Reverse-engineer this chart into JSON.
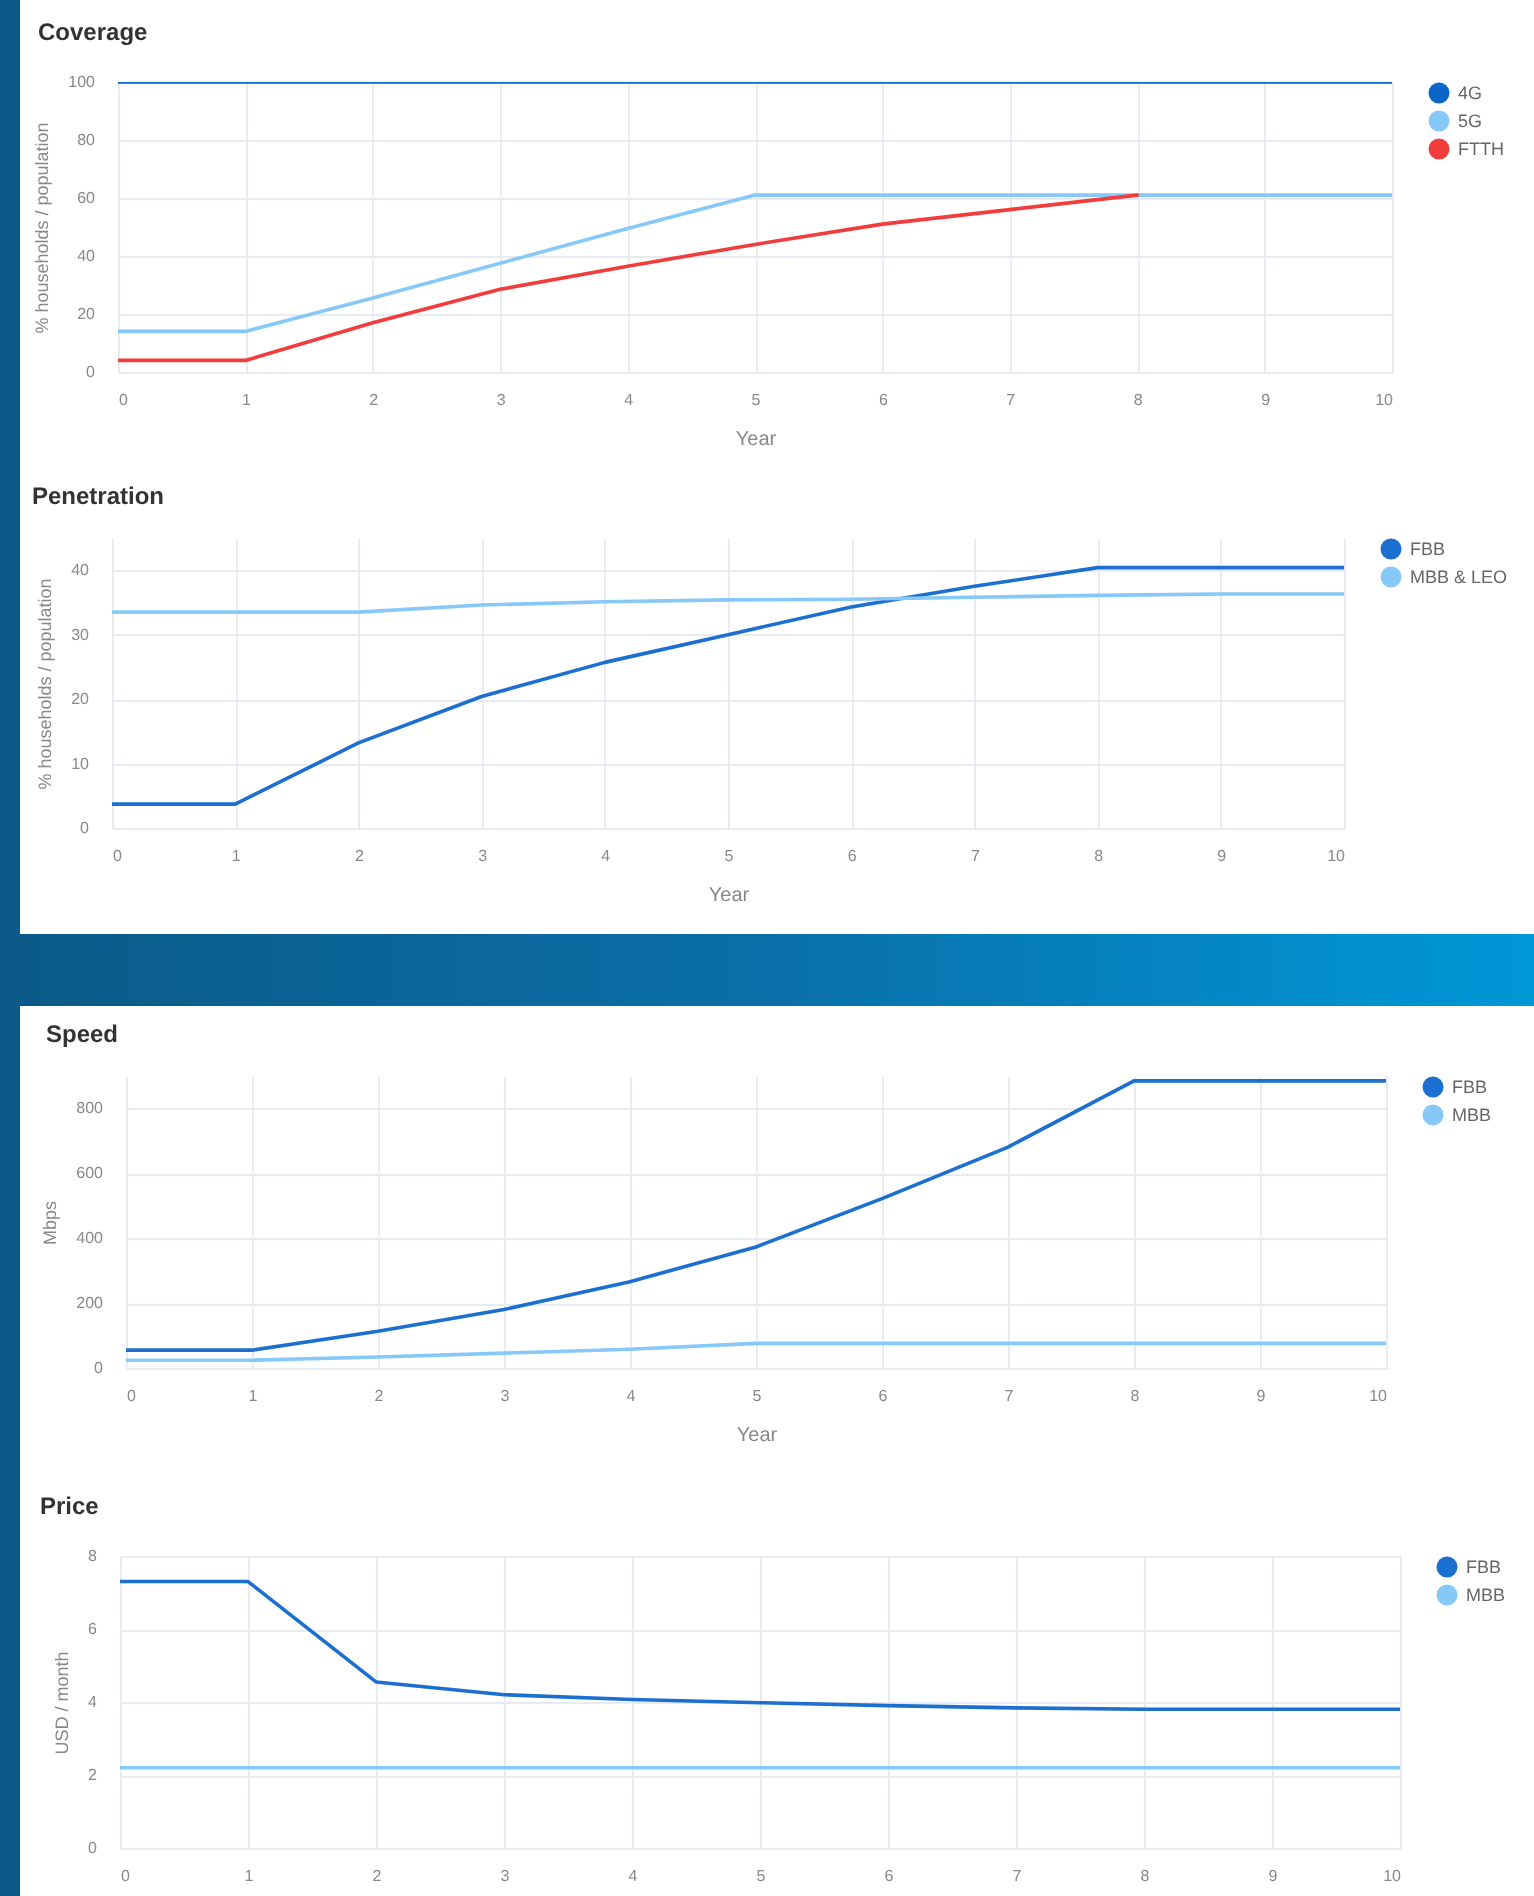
{
  "chart_data": [
    {
      "type": "line",
      "title": "Coverage",
      "xlabel": "Year",
      "ylabel": "% households / population",
      "x": [
        0,
        1,
        2,
        3,
        4,
        5,
        6,
        7,
        8,
        9,
        10
      ],
      "xlim": [
        0,
        10
      ],
      "xticks": [
        0,
        1,
        2,
        3,
        4,
        5,
        6,
        7,
        8,
        9,
        10
      ],
      "ylim": [
        0,
        100
      ],
      "yticks": [
        0,
        20,
        40,
        60,
        80,
        100
      ],
      "grid": true,
      "legend": "top right",
      "marker": "none",
      "line_style": "solid",
      "series": [
        {
          "name": "4G",
          "color": "#0b66c8",
          "values": [
            100,
            100,
            100,
            100,
            100,
            100,
            100,
            100,
            100,
            100,
            100
          ]
        },
        {
          "name": "5G",
          "color": "#86c8f8",
          "values": [
            14,
            14,
            25.5,
            37.5,
            49.5,
            61,
            61,
            61,
            61,
            61,
            61
          ]
        },
        {
          "name": "FTTH",
          "color": "#f23b3b",
          "values": [
            4,
            4,
            17,
            28.5,
            36.5,
            44,
            51,
            56,
            61,
            null,
            null
          ]
        }
      ]
    },
    {
      "type": "line",
      "title": "Penetration",
      "xlabel": "Year",
      "ylabel": "% households / population",
      "x": [
        0,
        1,
        2,
        3,
        4,
        5,
        6,
        7,
        8,
        9,
        10
      ],
      "xlim": [
        0,
        10
      ],
      "xticks": [
        0,
        1,
        2,
        3,
        4,
        5,
        6,
        7,
        8,
        9,
        10
      ],
      "ylim": [
        0,
        45
      ],
      "yticks": [
        0,
        10,
        20,
        30,
        40
      ],
      "grid": true,
      "legend": "top right",
      "marker": "none",
      "line_style": "solid",
      "series": [
        {
          "name": "FBB",
          "color": "#1a6fd0",
          "values": [
            3.7,
            3.7,
            13.2,
            20.4,
            25.7,
            30,
            34.3,
            37.5,
            40.4,
            40.4,
            40.4
          ]
        },
        {
          "name": "MBB & LEO",
          "color": "#86c8f8",
          "values": [
            33.5,
            33.5,
            33.5,
            34.6,
            35.1,
            35.4,
            35.5,
            35.8,
            36.1,
            36.3,
            36.3
          ]
        }
      ]
    },
    {
      "type": "line",
      "title": "Speed",
      "xlabel": "Year",
      "ylabel": "Mbps",
      "x": [
        0,
        1,
        2,
        3,
        4,
        5,
        6,
        7,
        8,
        9,
        10
      ],
      "xlim": [
        0,
        10
      ],
      "xticks": [
        0,
        1,
        2,
        3,
        4,
        5,
        6,
        7,
        8,
        9,
        10
      ],
      "ylim": [
        0,
        900
      ],
      "yticks": [
        0,
        200,
        400,
        600,
        800
      ],
      "grid": true,
      "legend": "top right",
      "marker": "none",
      "line_style": "solid",
      "series": [
        {
          "name": "FBB",
          "color": "#1a6fd0",
          "values": [
            55,
            55,
            113,
            180,
            266,
            373,
            522,
            681,
            885,
            885,
            885
          ]
        },
        {
          "name": "MBB",
          "color": "#86c8f8",
          "values": [
            24,
            24,
            34,
            46,
            58,
            76,
            76,
            76,
            76,
            76,
            76
          ]
        }
      ]
    },
    {
      "type": "line",
      "title": "Price",
      "ylabel": "USD / month",
      "x": [
        0,
        1,
        2,
        3,
        4,
        5,
        6,
        7,
        8,
        9,
        10
      ],
      "xlim": [
        0,
        10
      ],
      "xticks": [
        0,
        1,
        2,
        3,
        4,
        5,
        6,
        7,
        8,
        9,
        10
      ],
      "ylim": [
        0,
        8
      ],
      "yticks": [
        0,
        2,
        4,
        6,
        8
      ],
      "grid": true,
      "legend": "top right",
      "marker": "none",
      "line_style": "solid",
      "series": [
        {
          "name": "FBB",
          "color": "#1a6fd0",
          "values": [
            7.3,
            7.3,
            4.55,
            4.2,
            4.07,
            3.98,
            3.9,
            3.84,
            3.8,
            3.8,
            3.8
          ]
        },
        {
          "name": "MBB",
          "color": "#86c8f8",
          "values": [
            2.2,
            2.2,
            2.2,
            2.2,
            2.2,
            2.2,
            2.2,
            2.2,
            2.2,
            2.2,
            2.2
          ]
        }
      ]
    }
  ]
}
